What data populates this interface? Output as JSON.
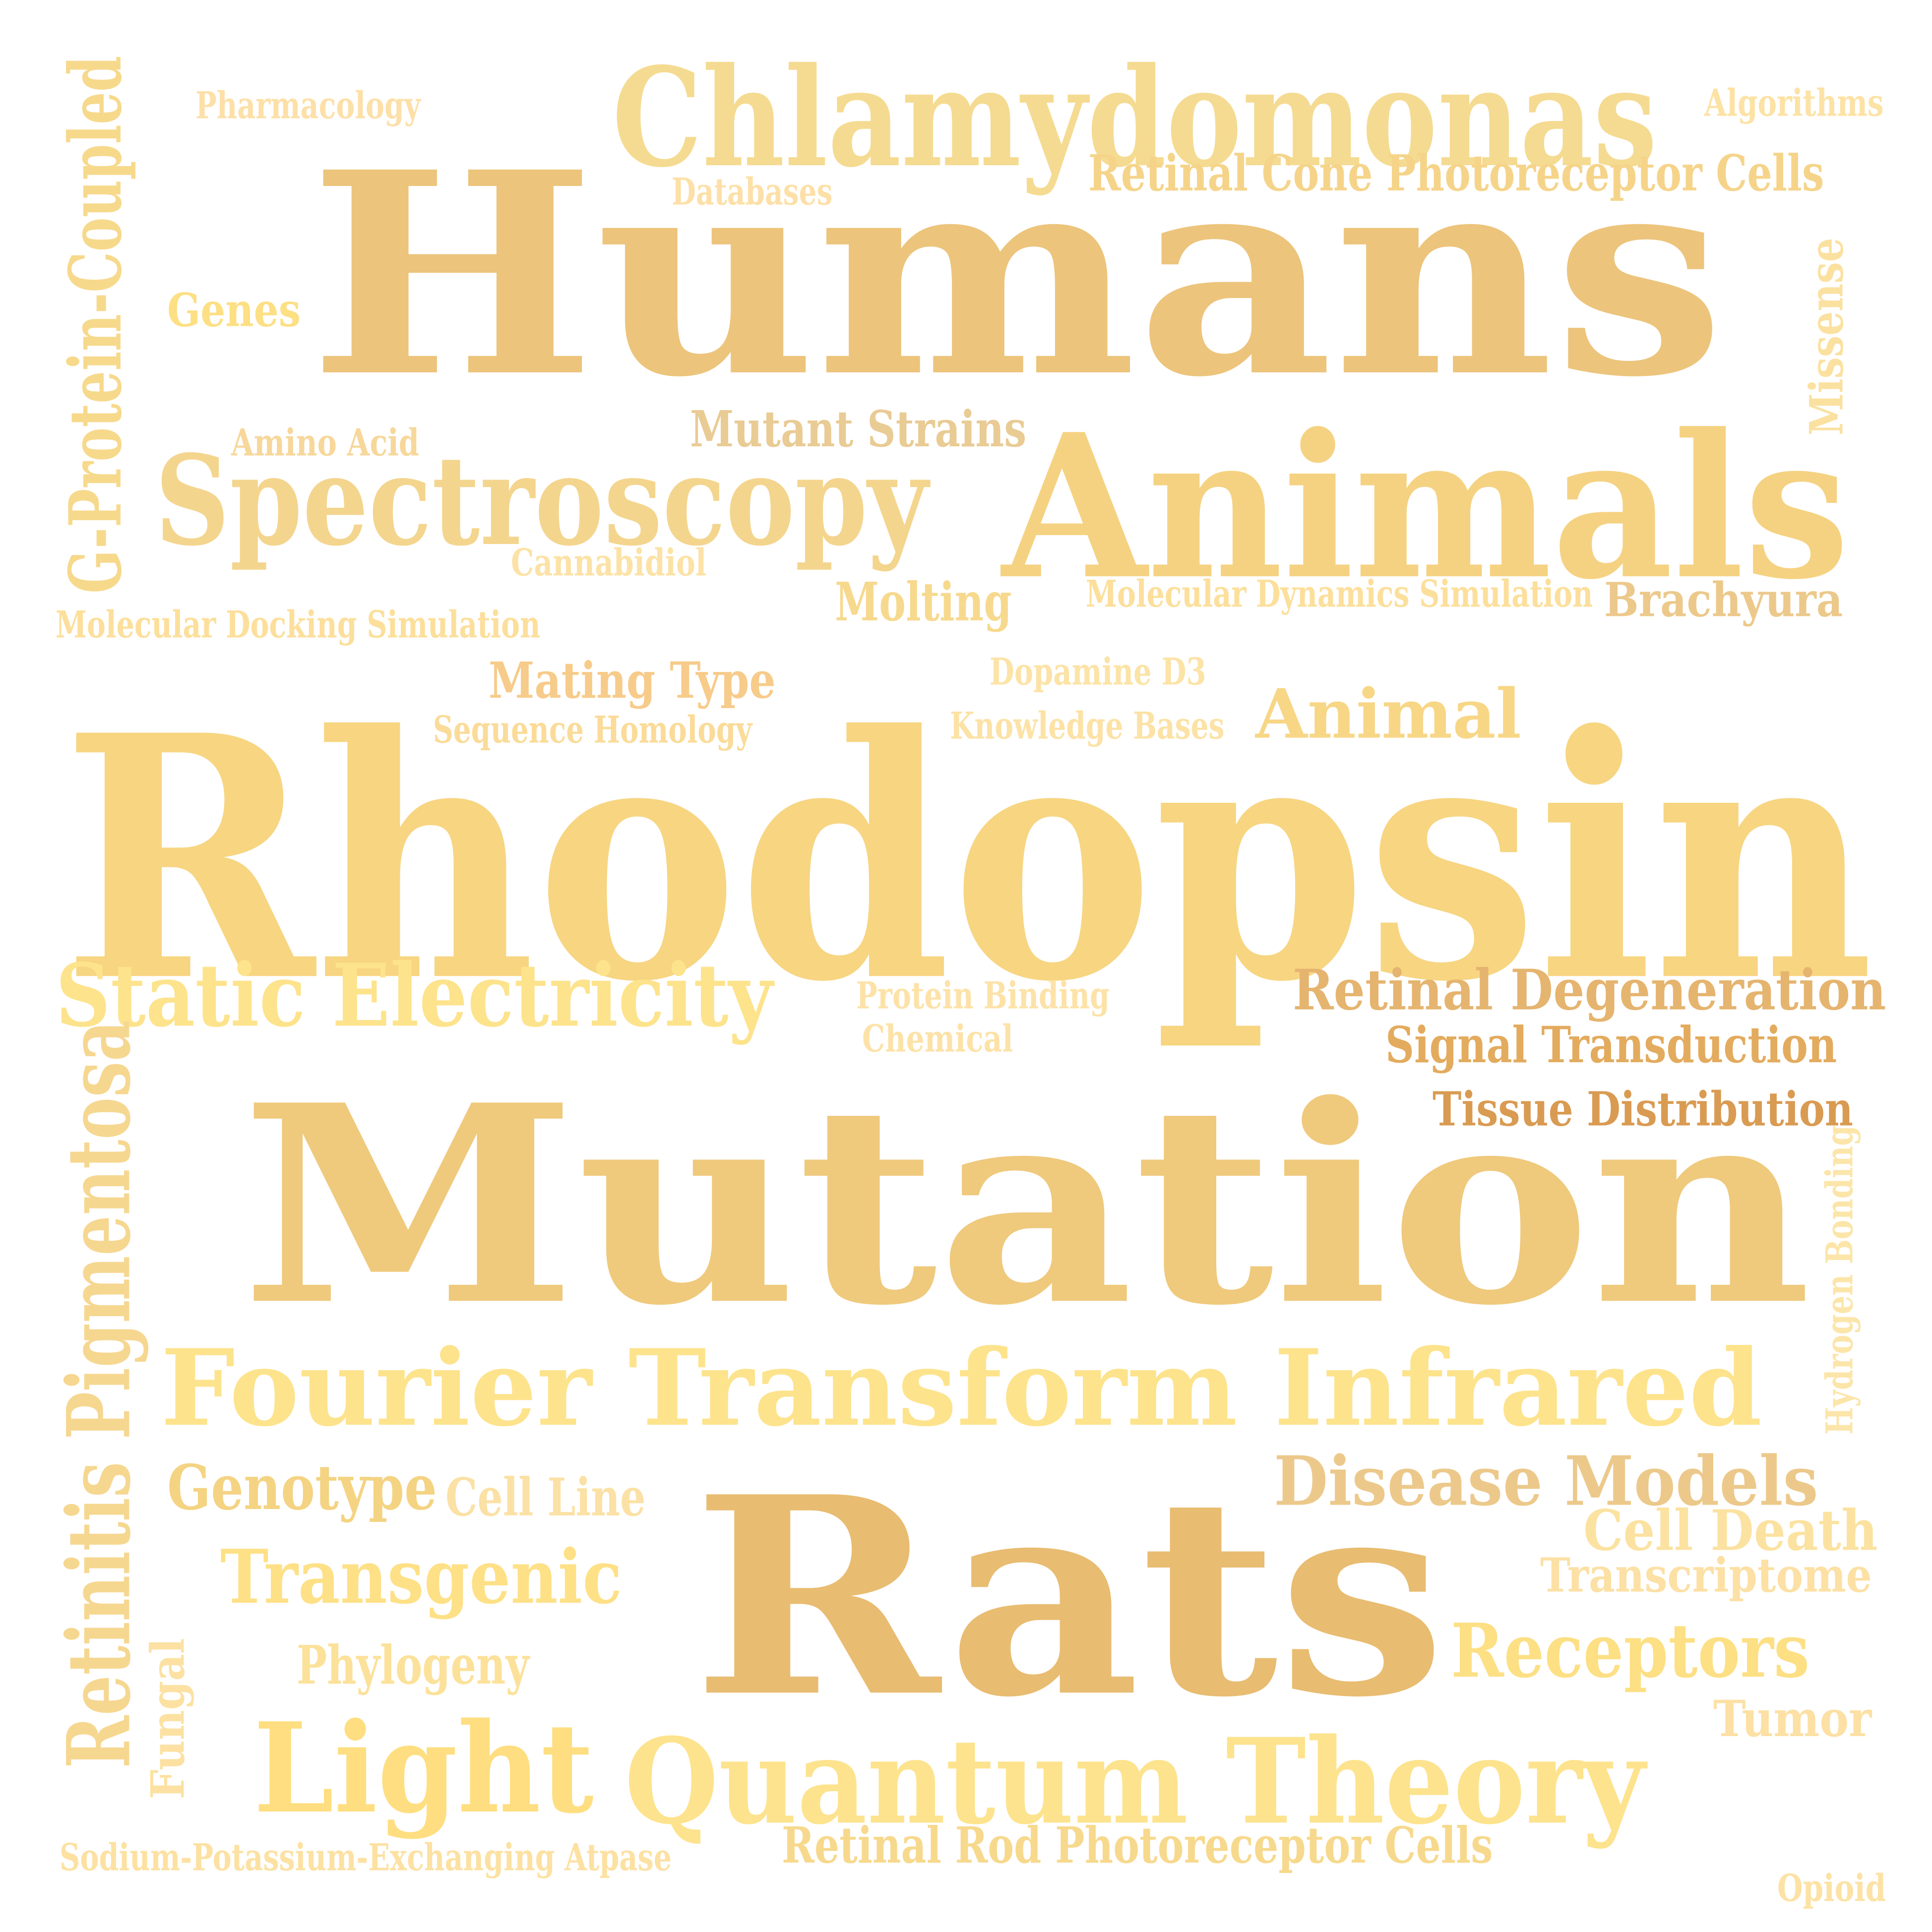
{
  "words": [
    {
      "text": "Rhodopsin",
      "color": "#F7D581"
    },
    {
      "text": "Mutation",
      "color": "#EFC97C"
    },
    {
      "text": "Humans",
      "color": "#ECC47B"
    },
    {
      "text": "Rats",
      "color": "#E8BC71"
    },
    {
      "text": "Animals",
      "color": "#F5D282"
    },
    {
      "text": "Chlamydomonas",
      "color": "#F5DB91"
    },
    {
      "text": "Spectroscopy",
      "color": "#F4D58E"
    },
    {
      "text": "Fourier Transform Infrared",
      "color": "#FDE38C"
    },
    {
      "text": "Quantum Theory",
      "color": "#FDE38D"
    },
    {
      "text": "Light",
      "color": "#FEDE80"
    },
    {
      "text": "Static Electricity",
      "color": "#FDE38C"
    },
    {
      "text": "Retinitis Pigmentosa",
      "color": "#F6D790"
    },
    {
      "text": "G-Protein-Coupled",
      "color": "#F7D98C"
    },
    {
      "text": "Retinal Cone Photoreceptor Cells",
      "color": "#F5D48A"
    },
    {
      "text": "Mutant Strains",
      "color": "#E9CB94"
    },
    {
      "text": "Disease Models",
      "color": "#ECC98B"
    },
    {
      "text": "Retinal Degeneration",
      "color": "#E5B46F"
    },
    {
      "text": "Signal Transduction",
      "color": "#E3AB5E"
    },
    {
      "text": "Tissue Distribution",
      "color": "#D99B52"
    },
    {
      "text": "Animal",
      "color": "#F7D686"
    },
    {
      "text": "Transgenic",
      "color": "#FEE086"
    },
    {
      "text": "Genotype",
      "color": "#F4D382"
    },
    {
      "text": "Cell Line",
      "color": "#FBE1A5"
    },
    {
      "text": "Receptors",
      "color": "#FDDF84"
    },
    {
      "text": "Cell Death",
      "color": "#FBE2A0"
    },
    {
      "text": "Transcriptome",
      "color": "#FCE0A4"
    },
    {
      "text": "Phylogeny",
      "color": "#FCE19A"
    },
    {
      "text": "Tumor",
      "color": "#FCE0A4"
    },
    {
      "text": "Retinal Rod Photoreceptor Cells",
      "color": "#F7D98D"
    },
    {
      "text": "Molting",
      "color": "#F7D98E"
    },
    {
      "text": "Mating Type",
      "color": "#F7CB8A"
    },
    {
      "text": "Brachyura",
      "color": "#ECC98B"
    },
    {
      "text": "Genes",
      "color": "#FDDF84"
    },
    {
      "text": "Missense",
      "color": "#FBE1A0"
    },
    {
      "text": "Amino Acid",
      "color": "#F7D79A"
    },
    {
      "text": "Cannabidiol",
      "color": "#FCE2A6"
    },
    {
      "text": "Molecular Docking Simulation",
      "color": "#FCDF9B"
    },
    {
      "text": "Molecular Dynamics Simulation",
      "color": "#FCDF9B"
    },
    {
      "text": "Dopamine D3",
      "color": "#FCE3A6"
    },
    {
      "text": "Sequence Homology",
      "color": "#FADB98"
    },
    {
      "text": "Knowledge Bases",
      "color": "#FCE2A5"
    },
    {
      "text": "Pharmacology",
      "color": "#FDE0A8"
    },
    {
      "text": "Databases",
      "color": "#FDE0A8"
    },
    {
      "text": "Algorithms",
      "color": "#FCE2A4"
    },
    {
      "text": "Protein Binding",
      "color": "#FDE2A8"
    },
    {
      "text": "Chemical",
      "color": "#FDE2A8"
    },
    {
      "text": "Hydrogen Bonding",
      "color": "#FCE5A9"
    },
    {
      "text": "Fungal",
      "color": "#FCE1A2"
    },
    {
      "text": "Sodium-Potassium-Exchanging Atpase",
      "color": "#FCE1A2"
    },
    {
      "text": "Opioid",
      "color": "#FCE2A4"
    }
  ]
}
